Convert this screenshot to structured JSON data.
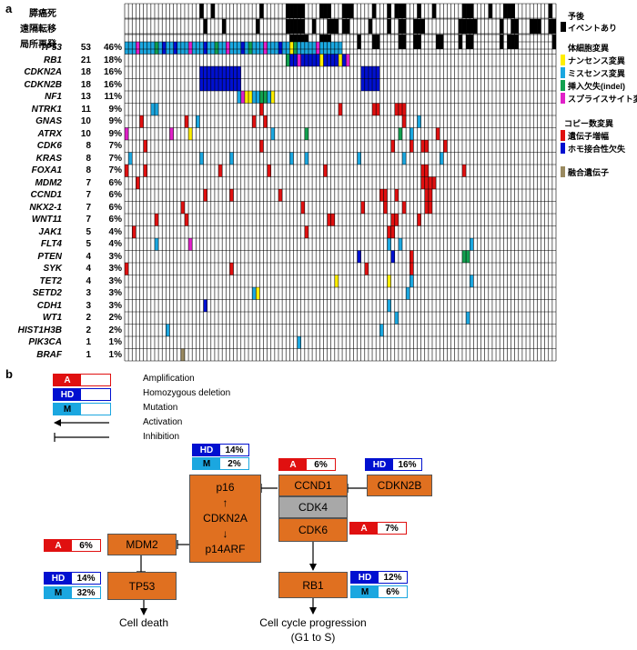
{
  "panel_a": {
    "label": "a",
    "top_rows": [
      "膵癌死",
      "遠隔転移",
      "局所再発"
    ],
    "genes": [
      {
        "name": "TP53",
        "count": "53",
        "pct": "46%"
      },
      {
        "name": "RB1",
        "count": "21",
        "pct": "18%"
      },
      {
        "name": "CDKN2A",
        "count": "18",
        "pct": "16%"
      },
      {
        "name": "CDKN2B",
        "count": "18",
        "pct": "16%"
      },
      {
        "name": "NF1",
        "count": "13",
        "pct": "11%"
      },
      {
        "name": "NTRK1",
        "count": "11",
        "pct": "9%"
      },
      {
        "name": "GNAS",
        "count": "10",
        "pct": "9%"
      },
      {
        "name": "ATRX",
        "count": "10",
        "pct": "9%"
      },
      {
        "name": "CDK6",
        "count": "8",
        "pct": "7%"
      },
      {
        "name": "KRAS",
        "count": "8",
        "pct": "7%"
      },
      {
        "name": "FOXA1",
        "count": "8",
        "pct": "7%"
      },
      {
        "name": "MDM2",
        "count": "7",
        "pct": "6%"
      },
      {
        "name": "CCND1",
        "count": "7",
        "pct": "6%"
      },
      {
        "name": "NKX2-1",
        "count": "7",
        "pct": "6%"
      },
      {
        "name": "WNT11",
        "count": "7",
        "pct": "6%"
      },
      {
        "name": "JAK1",
        "count": "5",
        "pct": "4%"
      },
      {
        "name": "FLT4",
        "count": "5",
        "pct": "4%"
      },
      {
        "name": "PTEN",
        "count": "4",
        "pct": "3%"
      },
      {
        "name": "SYK",
        "count": "4",
        "pct": "3%"
      },
      {
        "name": "TET2",
        "count": "4",
        "pct": "3%"
      },
      {
        "name": "SETD2",
        "count": "3",
        "pct": "3%"
      },
      {
        "name": "CDH1",
        "count": "3",
        "pct": "3%"
      },
      {
        "name": "WT1",
        "count": "2",
        "pct": "2%"
      },
      {
        "name": "HIST1H3B",
        "count": "2",
        "pct": "2%"
      },
      {
        "name": "PIK3CA",
        "count": "1",
        "pct": "1%"
      },
      {
        "name": "BRAF",
        "count": "1",
        "pct": "1%"
      }
    ],
    "legend": {
      "prognosis_head": "予後",
      "event_label": "イベントあり",
      "somatic_head": "体細胞変異",
      "nonsense": "ナンセンス変異",
      "missense": "ミスセンス変異",
      "indel": "挿入欠失(indel)",
      "splice": "スプライスサイト変異",
      "cnv_head": "コピー数変異",
      "amp": "遺伝子増幅",
      "homdel": "ホモ接合性欠失",
      "fusion": "融合遺伝子"
    },
    "colors": {
      "event": "#000000",
      "nonsense": "#FFEE00",
      "missense": "#1BA7E0",
      "indel": "#12A050",
      "splice": "#E020C8",
      "amp": "#E01010",
      "homdel": "#0010D0",
      "fusion": "#9A8A60"
    }
  },
  "panel_b": {
    "label": "b",
    "key": {
      "amp_tag": "A",
      "amp_label": "Amplification",
      "hd_tag": "HD",
      "hd_label": "Homozygous deletion",
      "m_tag": "M",
      "m_label": "Mutation",
      "activation": "Activation",
      "inhibition": "Inhibition"
    },
    "nodes": {
      "cdkn2a": [
        "p16",
        "↑",
        "CDKN2A",
        "↓",
        "p14ARF"
      ],
      "ccnd1": "CCND1",
      "cdk4": "CDK4",
      "cdk6": "CDK6",
      "cdkn2b": "CDKN2B",
      "mdm2": "MDM2",
      "tp53": "TP53",
      "rb1": "RB1"
    },
    "badges": {
      "cdkn2a_hd": "14%",
      "cdkn2a_m": "2%",
      "ccnd1_a": "6%",
      "cdkn2b_hd": "16%",
      "cdk6_a": "7%",
      "mdm2_a": "6%",
      "tp53_hd": "14%",
      "tp53_m": "32%",
      "rb1_hd": "12%",
      "rb1_m": "6%"
    },
    "outcomes": {
      "death": "Cell death",
      "progression": "Cell cycle progression",
      "progression_sub": "(G1 to S)"
    }
  }
}
